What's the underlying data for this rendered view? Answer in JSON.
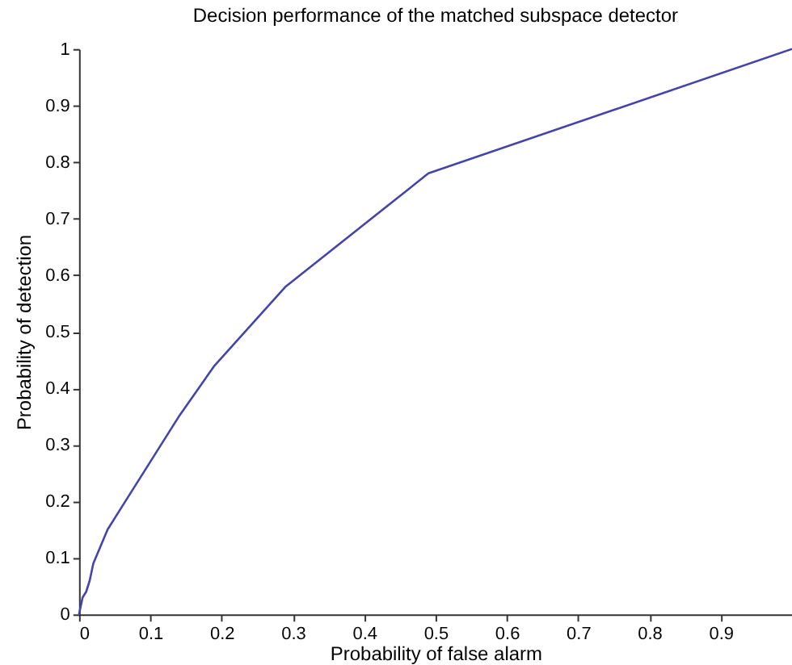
{
  "chart_data": {
    "type": "line",
    "title": "Decision performance of the matched subspace detector",
    "xlabel": "Probability of false alarm",
    "ylabel": "Probability of detection",
    "x": [
      0,
      0.005,
      0.01,
      0.015,
      0.02,
      0.03,
      0.04,
      0.06,
      0.1,
      0.14,
      0.19,
      0.29,
      0.49,
      1.0
    ],
    "series": [
      {
        "color": "#4444aa",
        "values": [
          0,
          0.03,
          0.04,
          0.06,
          0.09,
          0.12,
          0.15,
          0.19,
          0.27,
          0.35,
          0.44,
          0.58,
          0.78,
          1.0
        ]
      }
    ],
    "xlim": [
      0,
      1
    ],
    "xticks": [
      0,
      0.1,
      0.2,
      0.3,
      0.4,
      0.5,
      0.6,
      0.7,
      0.8,
      0.9
    ],
    "ylim": [
      0,
      1
    ],
    "yticks": [
      0,
      0.1,
      0.2,
      0.3,
      0.4,
      0.5,
      0.6,
      0.7,
      0.8,
      0.9,
      1
    ],
    "grid": false,
    "legend": false,
    "marker": "none",
    "line_style": "solid"
  }
}
